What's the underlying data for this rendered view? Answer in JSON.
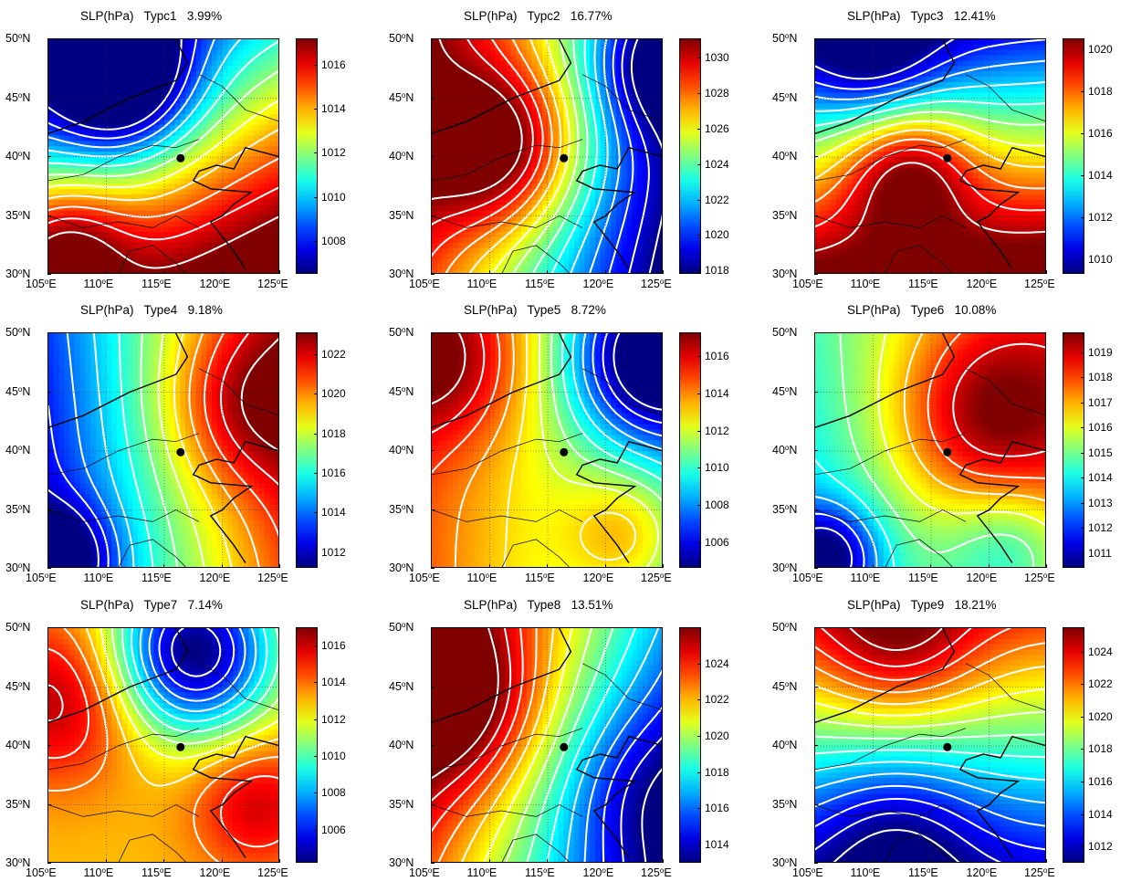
{
  "figure": {
    "lat_labels": [
      "50",
      "45",
      "40",
      "35",
      "30"
    ],
    "lat_suffix": "N",
    "lon_labels": [
      "105",
      "110",
      "115",
      "120",
      "125"
    ],
    "lon_suffix": "E",
    "degree_symbol": "o",
    "city_marker": {
      "lon": 116.4,
      "lat": 39.9
    }
  },
  "panels": [
    {
      "id": "p1",
      "label": "SLP(hPa)",
      "type_name": "Typc1",
      "frequency": "3.99%",
      "colorbar_ticks": [
        "1016",
        "1014",
        "1012",
        "1010",
        "1008"
      ],
      "cmin": 1006.5,
      "cmax": 1017.2,
      "field": {
        "base": 1013,
        "gx": 0.2,
        "gy": -0.4,
        "centers": [
          {
            "lon": 111,
            "lat": 46.5,
            "amp": -6.5,
            "r": 4.5
          },
          {
            "lon": 106,
            "lat": 32,
            "amp": 3.5,
            "r": 4
          }
        ]
      }
    },
    {
      "id": "p2",
      "label": "SLP(hPa)",
      "type_name": "Typc2",
      "frequency": "16.77%",
      "colorbar_ticks": [
        "1030",
        "1028",
        "1026",
        "1024",
        "1022",
        "1020",
        "1018"
      ],
      "cmin": 1017.8,
      "cmax": 1031.1,
      "field": {
        "base": 1024,
        "gx": -0.55,
        "gy": 0.12,
        "centers": [
          {
            "lon": 111,
            "lat": 41,
            "amp": 6,
            "r": 5
          },
          {
            "lon": 125,
            "lat": 48,
            "amp": -4,
            "r": 4
          }
        ]
      }
    },
    {
      "id": "p3",
      "label": "SLP(hPa)",
      "type_name": "Typc3",
      "frequency": "12.41%",
      "colorbar_ticks": [
        "1020",
        "1018",
        "1016",
        "1014",
        "1012",
        "1010"
      ],
      "cmin": 1009.3,
      "cmax": 1020.5,
      "field": {
        "base": 1016,
        "gx": 0.05,
        "gy": -0.55,
        "centers": [
          {
            "lon": 113,
            "lat": 39,
            "amp": 4,
            "r": 4
          },
          {
            "lon": 110,
            "lat": 49,
            "amp": -3,
            "r": 4
          }
        ]
      }
    },
    {
      "id": "p4",
      "label": "SLP(hPa)",
      "type_name": "Type4",
      "frequency": "9.18%",
      "colorbar_ticks": [
        "1022",
        "1020",
        "1018",
        "1016",
        "1014",
        "1012"
      ],
      "cmin": 1011.2,
      "cmax": 1023.1,
      "field": {
        "base": 1017,
        "gx": 0.42,
        "gy": 0.05,
        "centers": [
          {
            "lon": 122,
            "lat": 44,
            "amp": 3,
            "r": 5
          },
          {
            "lon": 106,
            "lat": 31,
            "amp": -4,
            "r": 3
          }
        ]
      }
    },
    {
      "id": "p5",
      "label": "SLP(hPa)",
      "type_name": "Type5",
      "frequency": "8.72%",
      "colorbar_ticks": [
        "1016",
        "1014",
        "1012",
        "1010",
        "1008",
        "1006"
      ],
      "cmin": 1004.6,
      "cmax": 1017.3,
      "field": {
        "base": 1012,
        "gx": -0.25,
        "gy": 0.0,
        "centers": [
          {
            "lon": 124,
            "lat": 48,
            "amp": -7,
            "r": 5
          },
          {
            "lon": 106,
            "lat": 48,
            "amp": 3.5,
            "r": 5
          },
          {
            "lon": 122,
            "lat": 33,
            "amp": 3,
            "r": 4
          }
        ]
      }
    },
    {
      "id": "p6",
      "label": "SLP(hPa)",
      "type_name": "Type6",
      "frequency": "10.08%",
      "colorbar_ticks": [
        "1019",
        "1018",
        "1017",
        "1016",
        "1015",
        "1014",
        "1013",
        "1012",
        "1011"
      ],
      "cmin": 1010.4,
      "cmax": 1019.8,
      "field": {
        "base": 1015.5,
        "gx": 0.15,
        "gy": 0.05,
        "centers": [
          {
            "lon": 120,
            "lat": 43,
            "amp": 3.5,
            "r": 6
          },
          {
            "lon": 106,
            "lat": 31,
            "amp": -4,
            "r": 3
          },
          {
            "lon": 122,
            "lat": 32,
            "amp": -2,
            "r": 4
          }
        ]
      }
    },
    {
      "id": "p7",
      "label": "SLP(hPa)",
      "type_name": "Type7",
      "frequency": "7.14%",
      "colorbar_ticks": [
        "1016",
        "1014",
        "1012",
        "1010",
        "1008",
        "1006"
      ],
      "cmin": 1004.2,
      "cmax": 1017.0,
      "field": {
        "base": 1013,
        "gx": 0.0,
        "gy": 0.0,
        "centers": [
          {
            "lon": 117.5,
            "lat": 48,
            "amp": -9,
            "r": 5
          },
          {
            "lon": 106,
            "lat": 44,
            "amp": 3.5,
            "r": 5
          },
          {
            "lon": 123,
            "lat": 35,
            "amp": 3,
            "r": 4
          }
        ]
      }
    },
    {
      "id": "p8",
      "label": "SLP(hPa)",
      "type_name": "Type8",
      "frequency": "13.51%",
      "colorbar_ticks": [
        "1024",
        "1022",
        "1020",
        "1018",
        "1016",
        "1014"
      ],
      "cmin": 1013.0,
      "cmax": 1026.0,
      "field": {
        "base": 1020,
        "gx": -0.5,
        "gy": 0.18,
        "centers": [
          {
            "lon": 107,
            "lat": 44,
            "amp": 4,
            "r": 5
          },
          {
            "lon": 123,
            "lat": 36,
            "amp": -2,
            "r": 5
          }
        ]
      }
    },
    {
      "id": "p9",
      "label": "SLP(hPa)",
      "type_name": "Type9",
      "frequency": "18.21%",
      "colorbar_ticks": [
        "1024",
        "1022",
        "1020",
        "1018",
        "1016",
        "1014",
        "1012"
      ],
      "cmin": 1011.0,
      "cmax": 1025.5,
      "field": {
        "base": 1017.5,
        "gx": 0.0,
        "gy": 0.5,
        "centers": [
          {
            "lon": 112,
            "lat": 49,
            "amp": 3.5,
            "r": 5
          },
          {
            "lon": 112,
            "lat": 32,
            "amp": -3,
            "r": 5
          }
        ]
      }
    }
  ]
}
